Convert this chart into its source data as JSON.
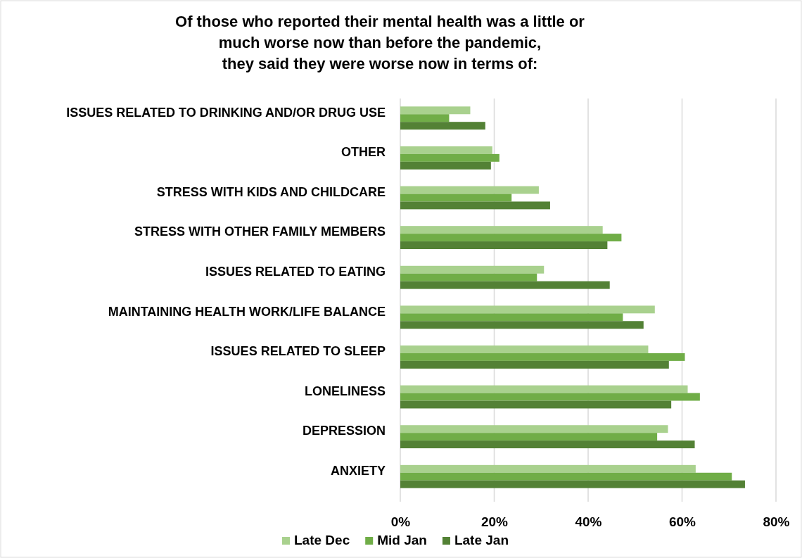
{
  "chart_data": {
    "type": "bar",
    "orientation": "horizontal",
    "title": "Of those who reported their mental health was a little or\nmuch worse now than before the pandemic,\nthey said they were worse now in terms of:",
    "categories": [
      "ISSUES RELATED TO DRINKING AND/OR DRUG USE",
      "OTHER",
      "STRESS WITH KIDS AND CHILDCARE",
      "STRESS WITH OTHER FAMILY MEMBERS",
      "ISSUES RELATED TO EATING",
      "MAINTAINING HEALTH WORK/LIFE BALANCE",
      "ISSUES RELATED TO SLEEP",
      "LONELINESS",
      "DEPRESSION",
      "ANXIETY"
    ],
    "series": [
      {
        "name": "Late Dec",
        "color": "#a9d18e",
        "values": [
          14.9,
          19.6,
          29.5,
          43.1,
          30.6,
          54.2,
          52.8,
          61.2,
          57.0,
          62.9
        ]
      },
      {
        "name": "Mid Jan",
        "color": "#70ad47",
        "values": [
          10.4,
          21.1,
          23.7,
          47.1,
          29.1,
          47.4,
          60.6,
          63.8,
          54.7,
          70.6
        ]
      },
      {
        "name": "Late Jan",
        "color": "#538135",
        "values": [
          18.1,
          19.3,
          31.9,
          44.1,
          44.6,
          51.8,
          57.2,
          57.7,
          62.7,
          73.4
        ]
      }
    ],
    "xlim": [
      0,
      80
    ],
    "xticks": [
      {
        "value": 0,
        "label": "0%"
      },
      {
        "value": 20,
        "label": "20%"
      },
      {
        "value": 40,
        "label": "40%"
      },
      {
        "value": 60,
        "label": "60%"
      },
      {
        "value": 80,
        "label": "80%"
      }
    ],
    "grid": "x",
    "legend": "bottom"
  }
}
